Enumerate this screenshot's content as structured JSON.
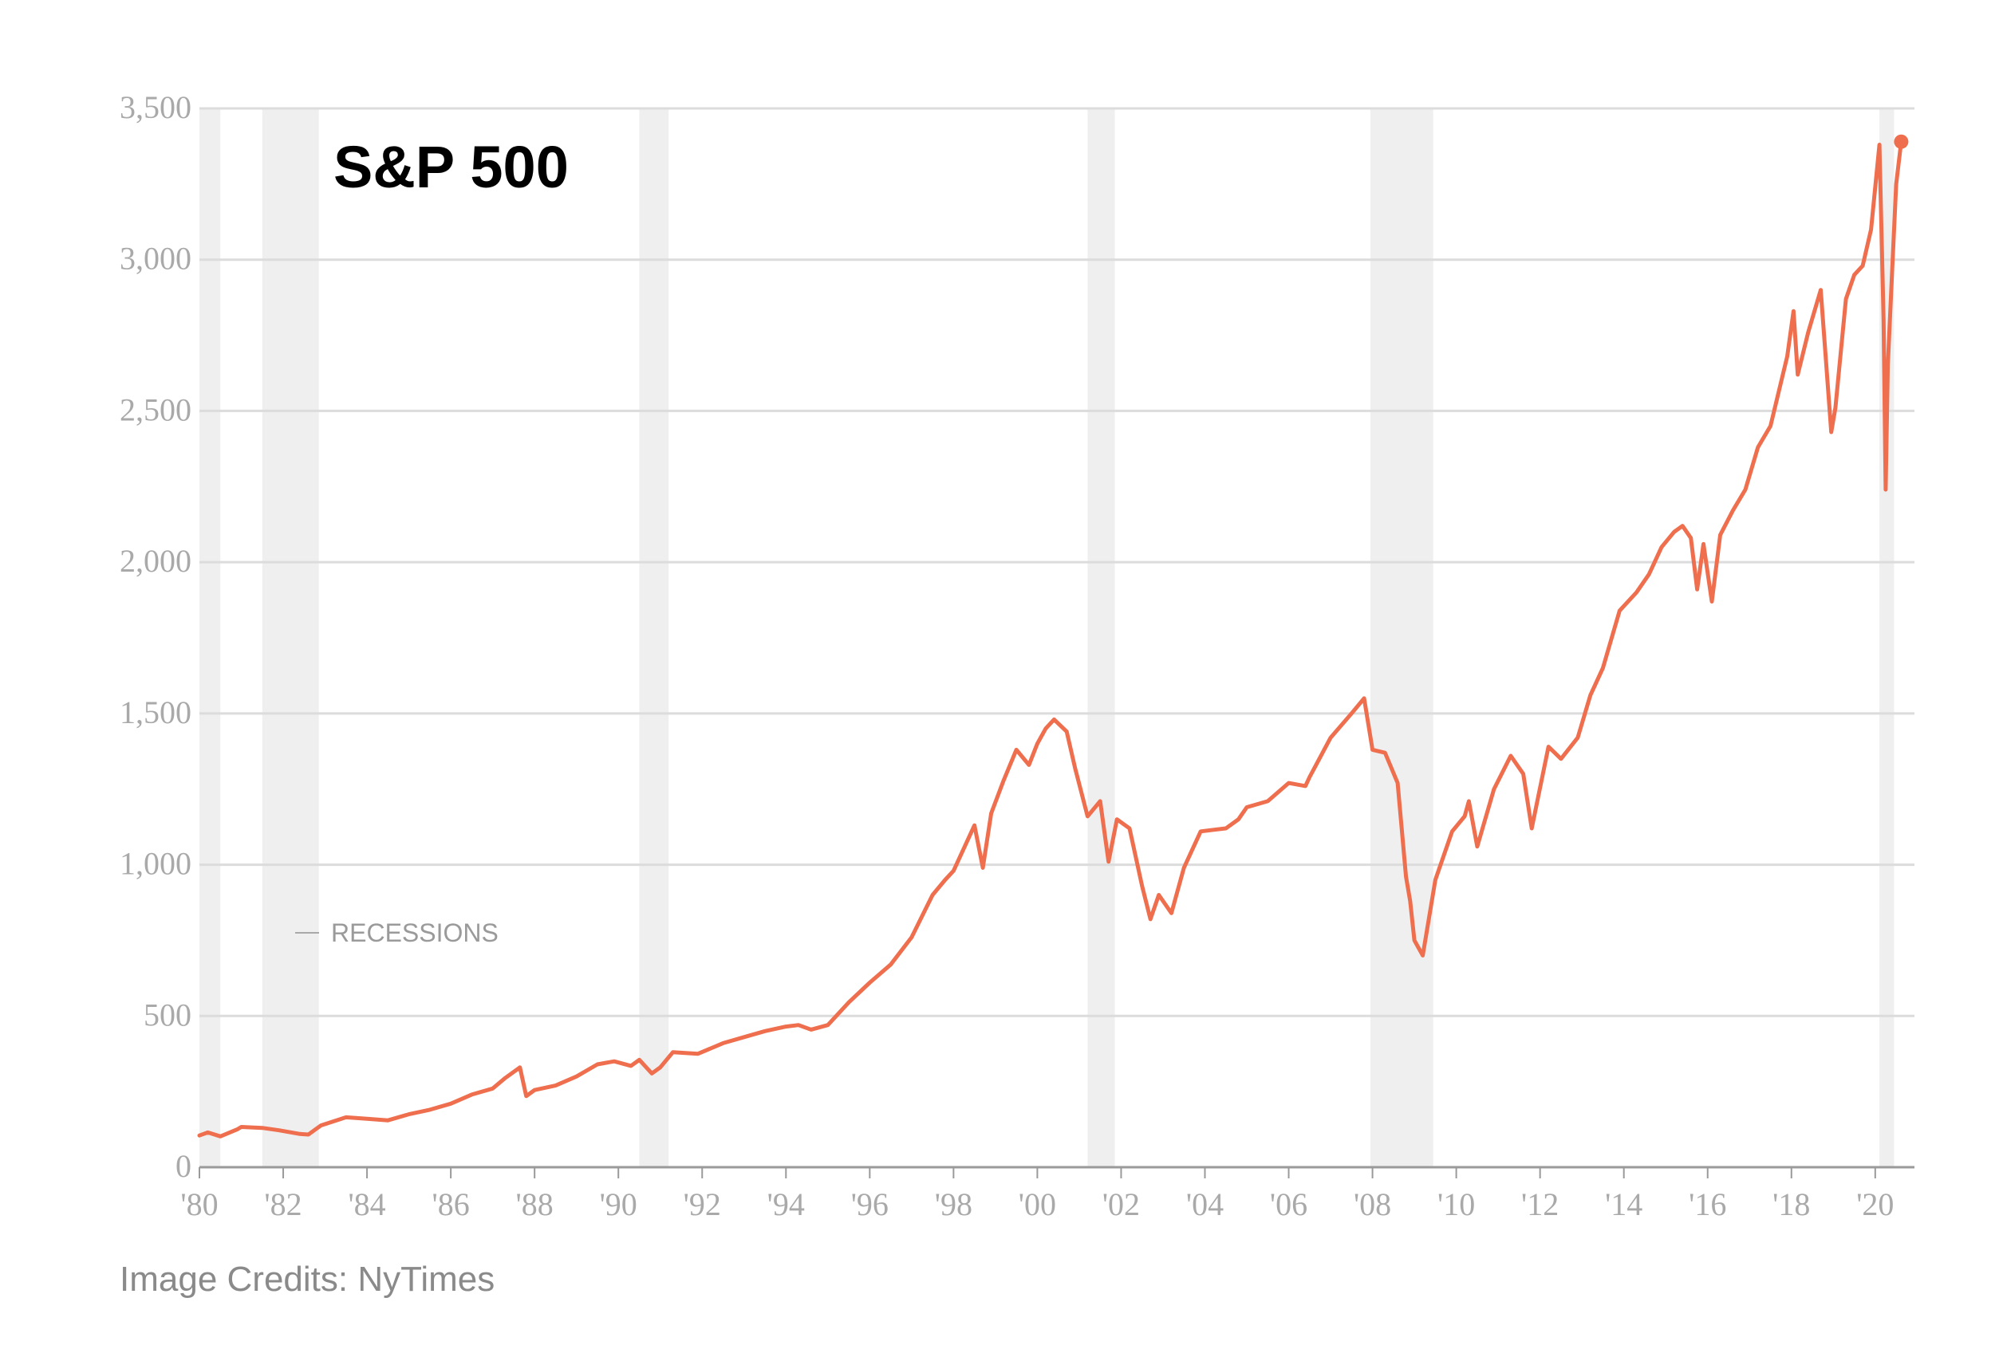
{
  "chart_data": {
    "type": "line",
    "title": "S&P 500",
    "xlabel": "",
    "ylabel": "",
    "xlim": [
      1980,
      2020.7
    ],
    "ylim": [
      0,
      3500
    ],
    "y_ticks": [
      0,
      500,
      1000,
      1500,
      2000,
      2500,
      3000,
      3500
    ],
    "y_tick_labels": [
      "0",
      "500",
      "1,000",
      "1,500",
      "2,000",
      "2,500",
      "3,000",
      "3,500"
    ],
    "x_ticks": [
      1980,
      1982,
      1984,
      1986,
      1988,
      1990,
      1992,
      1994,
      1996,
      1998,
      2000,
      2002,
      2004,
      2006,
      2008,
      2010,
      2012,
      2014,
      2016,
      2018,
      2020
    ],
    "x_tick_labels": [
      "'80",
      "'82",
      "'84",
      "'86",
      "'88",
      "'90",
      "'92",
      "'94",
      "'96",
      "'98",
      "'00",
      "'02",
      "'04",
      "'06",
      "'08",
      "'10",
      "'12",
      "'14",
      "'16",
      "'18",
      "'20"
    ],
    "grid": true,
    "legend": {
      "label": "RECESSIONS",
      "placement": "middle-left"
    },
    "recessions": [
      [
        1980.0,
        1980.5
      ],
      [
        1981.5,
        1982.85
      ],
      [
        1990.5,
        1991.2
      ],
      [
        2001.2,
        2001.85
      ],
      [
        2007.95,
        2009.45
      ],
      [
        2020.1,
        2020.45
      ]
    ],
    "series": [
      {
        "name": "S&P 500",
        "color": "#ee6e4e",
        "x": [
          1980.0,
          1980.2,
          1980.5,
          1980.9,
          1981.0,
          1981.5,
          1981.9,
          1982.4,
          1982.6,
          1982.9,
          1983.5,
          1984.0,
          1984.5,
          1985.0,
          1985.5,
          1986.0,
          1986.5,
          1987.0,
          1987.3,
          1987.65,
          1987.8,
          1988.0,
          1988.5,
          1989.0,
          1989.5,
          1989.9,
          1990.3,
          1990.5,
          1990.8,
          1991.0,
          1991.3,
          1991.9,
          1992.5,
          1993.0,
          1993.5,
          1994.0,
          1994.3,
          1994.6,
          1995.0,
          1995.5,
          1996.0,
          1996.5,
          1997.0,
          1997.5,
          1997.8,
          1998.0,
          1998.5,
          1998.7,
          1998.9,
          1999.2,
          1999.5,
          1999.8,
          2000.0,
          2000.2,
          2000.4,
          2000.7,
          2000.9,
          2001.2,
          2001.5,
          2001.7,
          2001.9,
          2002.2,
          2002.5,
          2002.7,
          2002.9,
          2003.2,
          2003.5,
          2003.9,
          2004.5,
          2004.8,
          2005.0,
          2005.5,
          2006.0,
          2006.4,
          2006.5,
          2007.0,
          2007.5,
          2007.8,
          2008.0,
          2008.3,
          2008.6,
          2008.8,
          2008.9,
          2009.0,
          2009.2,
          2009.5,
          2009.9,
          2010.2,
          2010.3,
          2010.5,
          2010.9,
          2011.3,
          2011.6,
          2011.8,
          2012.2,
          2012.5,
          2012.9,
          2013.2,
          2013.5,
          2013.9,
          2014.3,
          2014.6,
          2014.9,
          2015.2,
          2015.4,
          2015.6,
          2015.75,
          2015.9,
          2016.1,
          2016.3,
          2016.6,
          2016.9,
          2017.2,
          2017.5,
          2017.9,
          2018.05,
          2018.15,
          2018.4,
          2018.7,
          2018.95,
          2019.05,
          2019.3,
          2019.5,
          2019.7,
          2019.9,
          2020.1,
          2020.2,
          2020.25,
          2020.3,
          2020.4,
          2020.5,
          2020.62
        ],
        "values": [
          105,
          115,
          102,
          125,
          133,
          130,
          122,
          110,
          108,
          138,
          165,
          160,
          155,
          175,
          190,
          210,
          240,
          260,
          295,
          330,
          235,
          255,
          270,
          300,
          340,
          350,
          335,
          355,
          310,
          330,
          380,
          375,
          410,
          430,
          450,
          465,
          470,
          455,
          470,
          545,
          610,
          670,
          760,
          900,
          950,
          980,
          1130,
          990,
          1170,
          1280,
          1380,
          1330,
          1400,
          1450,
          1480,
          1440,
          1320,
          1160,
          1210,
          1010,
          1150,
          1120,
          930,
          820,
          900,
          840,
          990,
          1110,
          1120,
          1150,
          1190,
          1210,
          1270,
          1260,
          1290,
          1420,
          1500,
          1550,
          1380,
          1370,
          1270,
          960,
          880,
          750,
          700,
          950,
          1110,
          1160,
          1210,
          1060,
          1250,
          1360,
          1300,
          1120,
          1390,
          1350,
          1420,
          1560,
          1650,
          1840,
          1900,
          1960,
          2050,
          2100,
          2120,
          2080,
          1910,
          2060,
          1870,
          2090,
          2170,
          2240,
          2380,
          2450,
          2680,
          2830,
          2620,
          2760,
          2900,
          2430,
          2510,
          2870,
          2950,
          2980,
          3100,
          3380,
          2800,
          2240,
          2650,
          2950,
          3250,
          3390
        ]
      }
    ],
    "end_marker": {
      "x": 2020.62,
      "value": 3390
    }
  },
  "credit": "Image Credits: NyTimes"
}
